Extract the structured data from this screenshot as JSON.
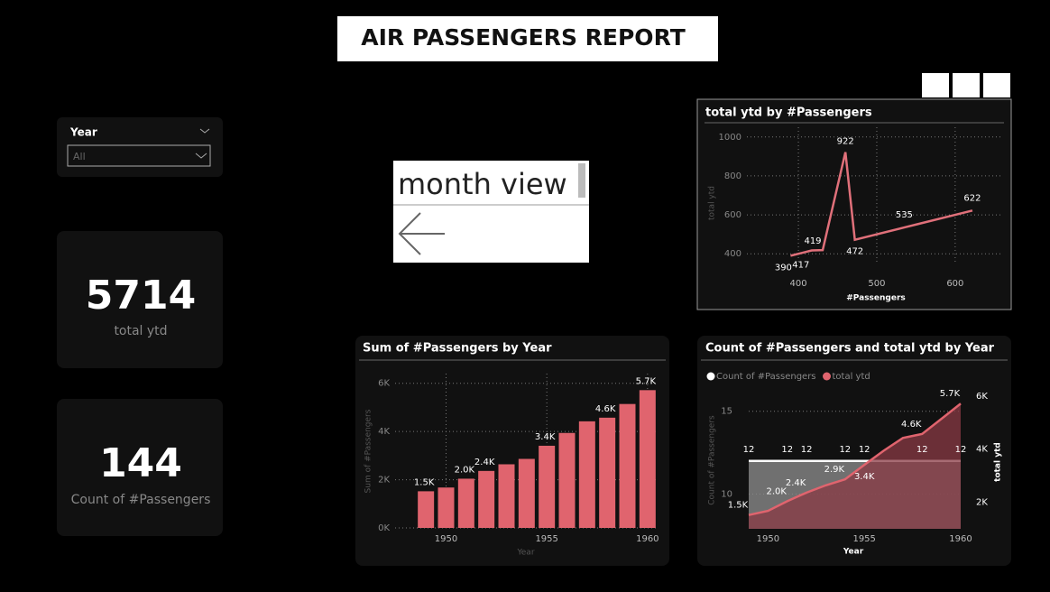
{
  "header": {
    "title": "AIR PASSENGERS REPORT"
  },
  "slicer": {
    "label": "Year",
    "value": "All"
  },
  "cards": [
    {
      "value": 5714,
      "label": "total ytd"
    },
    {
      "value": 144,
      "label": "Count of #Passengers"
    }
  ],
  "button": {
    "label": "month view"
  },
  "chart_data": [
    {
      "type": "line",
      "title": "total ytd by #Passengers",
      "x_label": "#Passengers",
      "y_label": "total ytd",
      "x": [
        390,
        417,
        431,
        460,
        472,
        535,
        622
      ],
      "values": [
        390,
        417,
        419,
        922,
        472,
        535,
        622
      ],
      "color": "#e0707a",
      "xlim": [
        370,
        660
      ],
      "xticks": [
        400,
        500,
        600
      ],
      "ylim": [
        350,
        1050
      ],
      "yticks": [
        400,
        600,
        800,
        1000
      ],
      "grid": true
    },
    {
      "type": "bar",
      "title": "Sum of #Passengers by Year",
      "x_label": "Year",
      "y_label": "Sum of #Passengers",
      "x": [
        1949,
        1950,
        1951,
        1952,
        1953,
        1954,
        1955,
        1956,
        1957,
        1958,
        1959,
        1960
      ],
      "values": [
        1520,
        1676,
        2042,
        2364,
        2639,
        2863,
        3408,
        3939,
        4421,
        4572,
        5140,
        5714
      ],
      "value_labels": [
        "1.5K",
        null,
        "2.0K",
        "2.4K",
        null,
        null,
        "3.4K",
        null,
        null,
        "4.6K",
        null,
        "5.7K"
      ],
      "color": "#e0646e",
      "xlim": [
        1948.5,
        1960.5
      ],
      "xticks": [
        1950,
        1955,
        1960
      ],
      "ylim": [
        0,
        6400
      ],
      "yticks": [
        {
          "value": 0,
          "label": "0K"
        },
        {
          "value": 2000,
          "label": "2K"
        },
        {
          "value": 4000,
          "label": "4K"
        },
        {
          "value": 6000,
          "label": "6K"
        }
      ],
      "grid": true
    },
    {
      "type": "area",
      "title": "Count of #Passengers and total ytd by Year",
      "x_label": "Year",
      "y_label": "Count of #Passengers",
      "y2_label": "total ytd",
      "x": [
        1949,
        1950,
        1951,
        1952,
        1953,
        1954,
        1955,
        1956,
        1957,
        1958,
        1959,
        1960
      ],
      "series": [
        {
          "name": "Count of #Passengers",
          "color": "#ffffff",
          "values": [
            12,
            12,
            12,
            12,
            12,
            12,
            12,
            12,
            12,
            12,
            12,
            12
          ],
          "value_labels": [
            "12",
            null,
            "12",
            "12",
            null,
            "12",
            "12",
            null,
            null,
            "12",
            null,
            "12"
          ]
        },
        {
          "name": "total ytd",
          "color": "#e0646e",
          "axis": "y2",
          "values": [
            1520,
            1676,
            2042,
            2364,
            2639,
            2863,
            3408,
            3939,
            4421,
            4572,
            5140,
            5714
          ],
          "value_labels": [
            "1.5K",
            null,
            "2.0K",
            "2.4K",
            null,
            "2.9K",
            "3.4K",
            null,
            null,
            "4.6K",
            null,
            "5.7K"
          ]
        }
      ],
      "xlim": [
        1949,
        1960
      ],
      "xticks": [
        1950,
        1955,
        1960
      ],
      "ylim": [
        7.9,
        16.4
      ],
      "yticks": [
        10,
        15
      ],
      "y2lim": [
        1000,
        6300
      ],
      "y2ticks": [
        {
          "value": 2000,
          "label": "2K"
        },
        {
          "value": 4000,
          "label": "4K"
        },
        {
          "value": 6000,
          "label": "6K"
        }
      ],
      "grid": true
    }
  ]
}
